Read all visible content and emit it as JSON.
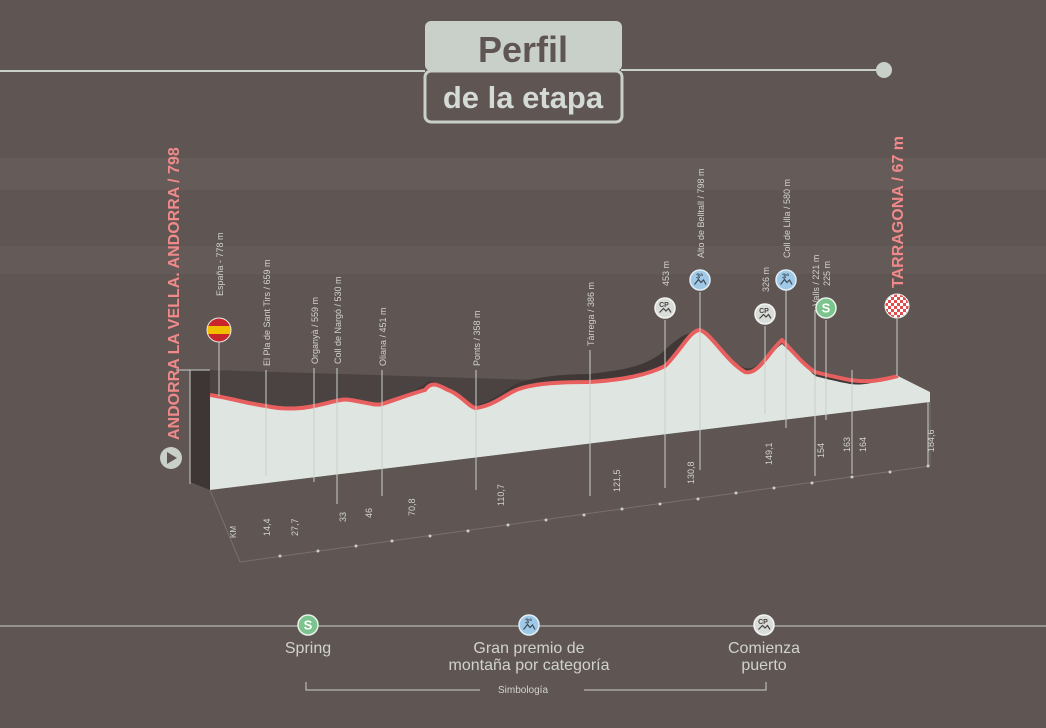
{
  "title": {
    "line1": "Perfil",
    "line2": "de la etapa"
  },
  "start": {
    "label": "ANDORRA LA VELLA. ANDORRA / 798",
    "icon": "play-icon",
    "flag_icon": "spain-flag-icon"
  },
  "finish": {
    "label": "TARRAGONA / 67 m",
    "icon": "checkered-flag-icon"
  },
  "km_axis_label": "KM",
  "points": [
    {
      "label": "España - 778 m",
      "km": "",
      "icon": "spain-flag-icon"
    },
    {
      "label": "El Pla de Sant Tirs / 659 m",
      "km": "14,4",
      "icon": ""
    },
    {
      "label": "Organyà / 559 m",
      "km": "27,7",
      "icon": ""
    },
    {
      "label": "Coll de Nargó / 530 m",
      "km": "33",
      "icon": ""
    },
    {
      "label": "Oliana / 451 m",
      "km": "46",
      "icon": ""
    },
    {
      "label": "Ponts / 358 m",
      "km": "70,8",
      "icon": ""
    },
    {
      "label": "Tàrrega / 386 m",
      "km": "110,7",
      "icon": ""
    },
    {
      "label": "453 m",
      "km": "121,5",
      "icon": "climb-start-icon"
    },
    {
      "label": "Alto de Belltall / 798 m",
      "km": "130,8",
      "icon": "mountain-category-3-icon"
    },
    {
      "label": "326 m",
      "km": "",
      "icon": "climb-start-icon"
    },
    {
      "label": "Coll de Lilla / 580 m",
      "km": "149,1",
      "icon": "mountain-category-3-icon"
    },
    {
      "label": "Valls / 221 m",
      "km": "154",
      "icon": ""
    },
    {
      "label": "225 m",
      "km": "163",
      "icon": "sprint-icon"
    },
    {
      "label": "",
      "km": "164",
      "icon": ""
    },
    {
      "label": "",
      "km": "184,6",
      "icon": ""
    }
  ],
  "legend": {
    "items": [
      {
        "icon": "sprint-icon",
        "label_lines": [
          "Spring"
        ]
      },
      {
        "icon": "mountain-category-3-icon",
        "label_lines": [
          "Gran premio de",
          "montaña por categoría"
        ]
      },
      {
        "icon": "climb-start-icon",
        "label_lines": [
          "Comienza",
          "puerto"
        ]
      }
    ],
    "caption": "Simbología"
  },
  "colors": {
    "background": "#5f5553",
    "band": "#675d5b",
    "profile_line": "#e85f5f",
    "profile_fill": "#dfe6e1",
    "profile_shadow": "#3f3836",
    "text": "#d0d3cc",
    "title_box": "#c9d0ca",
    "title_text": "#5f5553",
    "start_text": "#f08a8a",
    "sprint_green": "#7cc48d",
    "mountain_blue": "#9fc9e6"
  }
}
